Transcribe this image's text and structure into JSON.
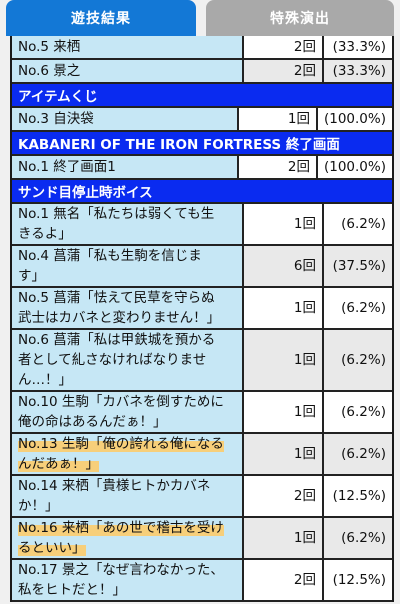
{
  "tabs": [
    {
      "label": "遊技結果"
    },
    {
      "label": "特殊演出"
    }
  ],
  "rows_top": [
    {
      "name": "No.5 来栖",
      "count": "2回",
      "pct": "(33.3%)"
    },
    {
      "name": "No.6 景之",
      "count": "2回",
      "pct": "(33.3%)"
    }
  ],
  "section_item": {
    "title": "アイテムくじ"
  },
  "rows_item": [
    {
      "name": "No.3 自決袋",
      "count": "1回",
      "pct": "(100.0%)"
    }
  ],
  "section_end": {
    "title": "KABANERI OF THE IRON FORTRESS 終了画面"
  },
  "rows_end": [
    {
      "name": "No.1 終了画面1",
      "count": "2回",
      "pct": "(100.0%)"
    }
  ],
  "section_voice": {
    "title": "サンド目停止時ボイス"
  },
  "rows_voice": [
    {
      "name_l1": "No.1 無名「私たちは弱くても生",
      "name_l2": "きるよ」",
      "count": "1回",
      "pct": "(6.2%)"
    },
    {
      "name_l1": "No.4 菖蒲「私も生駒を信じま",
      "name_l2": "す」",
      "count": "6回",
      "pct": "(37.5%)"
    },
    {
      "name_l1": "No.5 菖蒲「怯えて民草を守らぬ",
      "name_l2": "武士はカバネと変わりません！」",
      "count": "1回",
      "pct": "(6.2%)"
    },
    {
      "name_l1": "No.6 菖蒲「私は甲鉄城を預かる",
      "name_l2": "者として糺さなければなりませ",
      "name_l3": "ん…！」",
      "count": "1回",
      "pct": "(6.2%)"
    },
    {
      "name_l1": "No.10 生駒「カバネを倒すために",
      "name_l2": "俺の命はあるんだぁ！」",
      "count": "1回",
      "pct": "(6.2%)"
    },
    {
      "name_l1": "No.13 生駒「俺の誇れる俺になる",
      "name_l2": "んだあぁ！」",
      "count": "1回",
      "pct": "(6.2%)"
    },
    {
      "name_l1": "No.14 来栖「貴様ヒトかカバネ",
      "name_l2": "か！」",
      "count": "2回",
      "pct": "(12.5%)"
    },
    {
      "name_l1": "No.16 来栖「あの世で稽古を受け",
      "name_l2": "るといい」",
      "count": "1回",
      "pct": "(6.2%)"
    },
    {
      "name_l1": "No.17 景之「なぜ言わなかった、",
      "name_l2": "私をヒトだと！」",
      "count": "2回",
      "pct": "(12.5%)"
    }
  ],
  "colors": {
    "tab_active": "#1378d6",
    "tab_inactive": "#a9a9a9",
    "section_bg": "#0a2bf0",
    "name_cell": "#c6e7f5",
    "highlight": "#f7cf7a"
  }
}
